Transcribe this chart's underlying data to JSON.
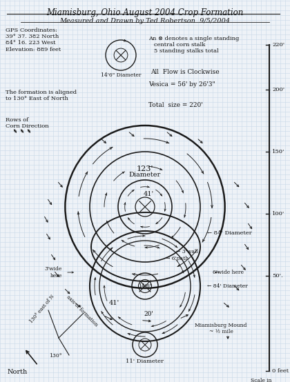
{
  "title1": "Miamisburg, Ohio August 2004 Crop Formation",
  "title2": "Measured and Drawn by Ted Robertson  9/5/2004",
  "bg_color": "#eef2f7",
  "grid_color": "#c8d8e8",
  "line_color": "#1a1a1a",
  "text_color": "#111111",
  "gps_text": "GPS Coordinates:\n39° 37. 382 North\n84° 16. 223 West\nElevation: 889 feet",
  "legend_text": "An ⊗ denotes a single standing\n   central corn stalk\n   5 standing stalks total",
  "flow_text": "All  Flow is Clockwise",
  "vesica_text": "Vesica = 56' by 26'3\"",
  "total_text": "Total  size = 220'",
  "aligned_text": "The formation is aligned\nto 130° East of North",
  "rows_text": "Rows of\nCorn Direction",
  "mound_text": "Miamisburg Mound\n~ ½ mile",
  "scale_text": "Scale in\nFeet",
  "north_text": "North"
}
